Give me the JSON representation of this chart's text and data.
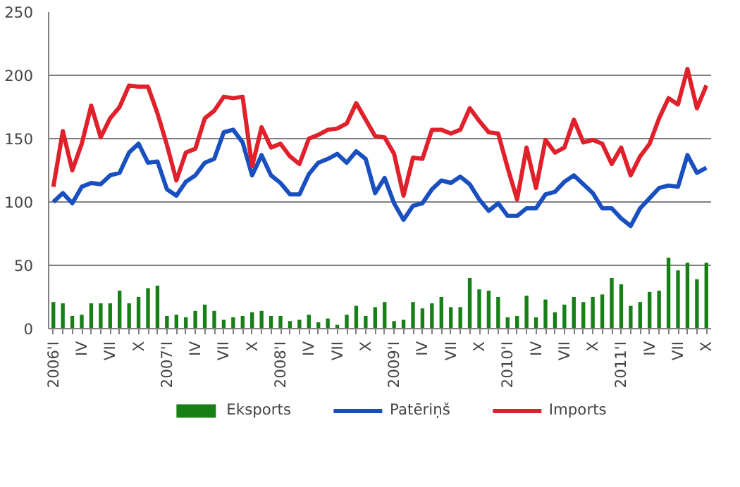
{
  "chart_data": {
    "type": "line",
    "categories": [
      "2006'I",
      null,
      null,
      "IV",
      null,
      null,
      "VII",
      null,
      null,
      "X",
      null,
      null,
      "2007'I",
      null,
      null,
      "IV",
      null,
      null,
      "VII",
      null,
      null,
      "X",
      null,
      null,
      "2008'I",
      null,
      null,
      "IV",
      null,
      null,
      "VII",
      null,
      null,
      "X",
      null,
      null,
      "2009'I",
      null,
      null,
      "IV",
      null,
      null,
      "VII",
      null,
      null,
      "X",
      null,
      null,
      "2010'I",
      null,
      null,
      "IV",
      null,
      null,
      "VII",
      null,
      null,
      "X",
      null,
      null,
      "2011'I",
      null,
      null,
      "IV",
      null,
      null,
      "VII",
      null,
      null,
      "X"
    ],
    "series": [
      {
        "name": "Eksports",
        "type": "bar",
        "color": "#168016",
        "values": [
          21,
          20,
          10,
          11,
          20,
          20,
          20,
          30,
          20,
          25,
          32,
          34,
          10,
          11,
          9,
          14,
          19,
          14,
          7,
          9,
          10,
          13,
          14,
          10,
          10,
          6,
          7,
          11,
          5,
          8,
          3,
          11,
          18,
          10,
          17,
          21,
          6,
          7,
          21,
          16,
          20,
          25,
          17,
          17,
          40,
          31,
          30,
          25,
          9,
          10,
          26,
          9,
          23,
          13,
          19,
          25,
          21,
          25,
          27,
          40,
          35,
          18,
          21,
          29,
          30,
          56,
          46,
          52,
          39,
          52
        ]
      },
      {
        "name": "Patēriņš",
        "color": "#1a4fc0",
        "values": [
          100,
          107,
          99,
          112,
          115,
          114,
          121,
          123,
          139,
          146,
          131,
          132,
          110,
          105,
          116,
          121,
          131,
          134,
          155,
          157,
          147,
          121,
          137,
          121,
          115,
          106,
          106,
          122,
          131,
          134,
          138,
          131,
          140,
          134,
          107,
          119,
          99,
          86,
          97,
          99,
          110,
          117,
          115,
          120,
          114,
          102,
          93,
          99,
          89,
          89,
          95,
          95,
          106,
          108,
          116,
          121,
          114,
          107,
          95,
          95,
          87,
          81,
          95,
          103,
          111,
          113,
          112,
          137,
          123,
          127
        ]
      },
      {
        "name": "Imports",
        "color": "#e0202a",
        "values": [
          112,
          156,
          125,
          146,
          176,
          151,
          166,
          175,
          192,
          191,
          191,
          170,
          145,
          117,
          139,
          142,
          166,
          172,
          183,
          182,
          183,
          128,
          159,
          143,
          146,
          136,
          130,
          150,
          153,
          157,
          158,
          162,
          178,
          165,
          152,
          151,
          138,
          105,
          135,
          134,
          157,
          157,
          154,
          157,
          174,
          164,
          155,
          154,
          127,
          102,
          143,
          111,
          149,
          139,
          143,
          165,
          147,
          149,
          146,
          130,
          143,
          121,
          136,
          146,
          166,
          182,
          177,
          205,
          174,
          192
        ]
      }
    ],
    "ylim": [
      0,
      250
    ],
    "yticks": [
      0,
      50,
      100,
      150,
      200,
      250
    ],
    "grid": "y",
    "legend": "bottom"
  }
}
